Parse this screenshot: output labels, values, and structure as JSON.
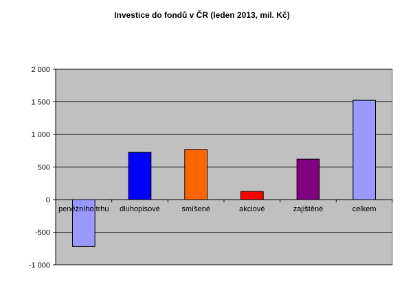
{
  "chart_data": {
    "type": "bar",
    "title": "Investice do fondů v ČR (leden 2013, mil. Kč)",
    "xlabel": "",
    "ylabel": "",
    "categories": [
      "peněžního trhu",
      "dluhopisové",
      "smíšené",
      "akciové",
      "zajištěné",
      "celkem"
    ],
    "values": [
      -720,
      725,
      770,
      125,
      620,
      1525
    ],
    "colors": [
      "#9999ff",
      "#0000ff",
      "#ff6600",
      "#ff0000",
      "#800080",
      "#9999ff"
    ],
    "ylim": [
      -1000,
      2000
    ],
    "yticks": [
      -1000,
      -500,
      0,
      500,
      1000,
      1500,
      2000
    ],
    "ytick_labels": [
      "-1 000",
      "-500",
      "0",
      "500",
      "1 000",
      "1 500",
      "2 000"
    ],
    "grid": true,
    "plot_background": "#c0c0c0",
    "legend": "none"
  }
}
